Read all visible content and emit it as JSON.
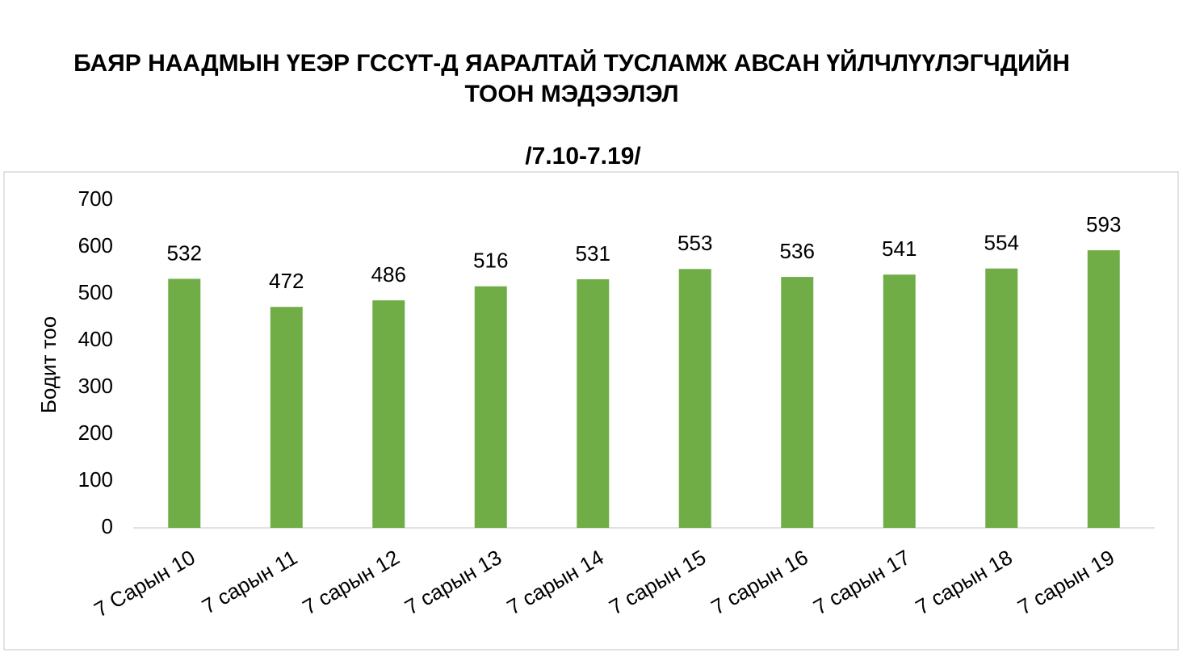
{
  "chart_data": {
    "type": "bar",
    "title": [
      "БАЯР НААДМЫН ҮЕЭР ГССҮТ-Д ЯАРАЛТАЙ ТУСЛАМЖ АВСАН ҮЙЛЧЛҮҮЛЭГЧДИЙН",
      "ТООН МЭДЭЭЛЭЛ"
    ],
    "subtitle": "/7.10-7.19/",
    "y_label": "Бодит тоо",
    "categories": [
      "7 Сарын 10",
      "7 сарын 11",
      "7 сарын 12",
      "7 сарын 13",
      "7 сарын 14",
      "7 сарын 15",
      "7 сарын 16",
      "7 сарын 17",
      "7 сарын 18",
      "7 сарын 19"
    ],
    "values": [
      532,
      472,
      486,
      516,
      531,
      553,
      536,
      541,
      554,
      593
    ],
    "color": "#70ad47",
    "ylim": [
      0,
      700
    ],
    "yticks": [
      0,
      100,
      200,
      300,
      400,
      500,
      600,
      700
    ],
    "grid": false
  }
}
